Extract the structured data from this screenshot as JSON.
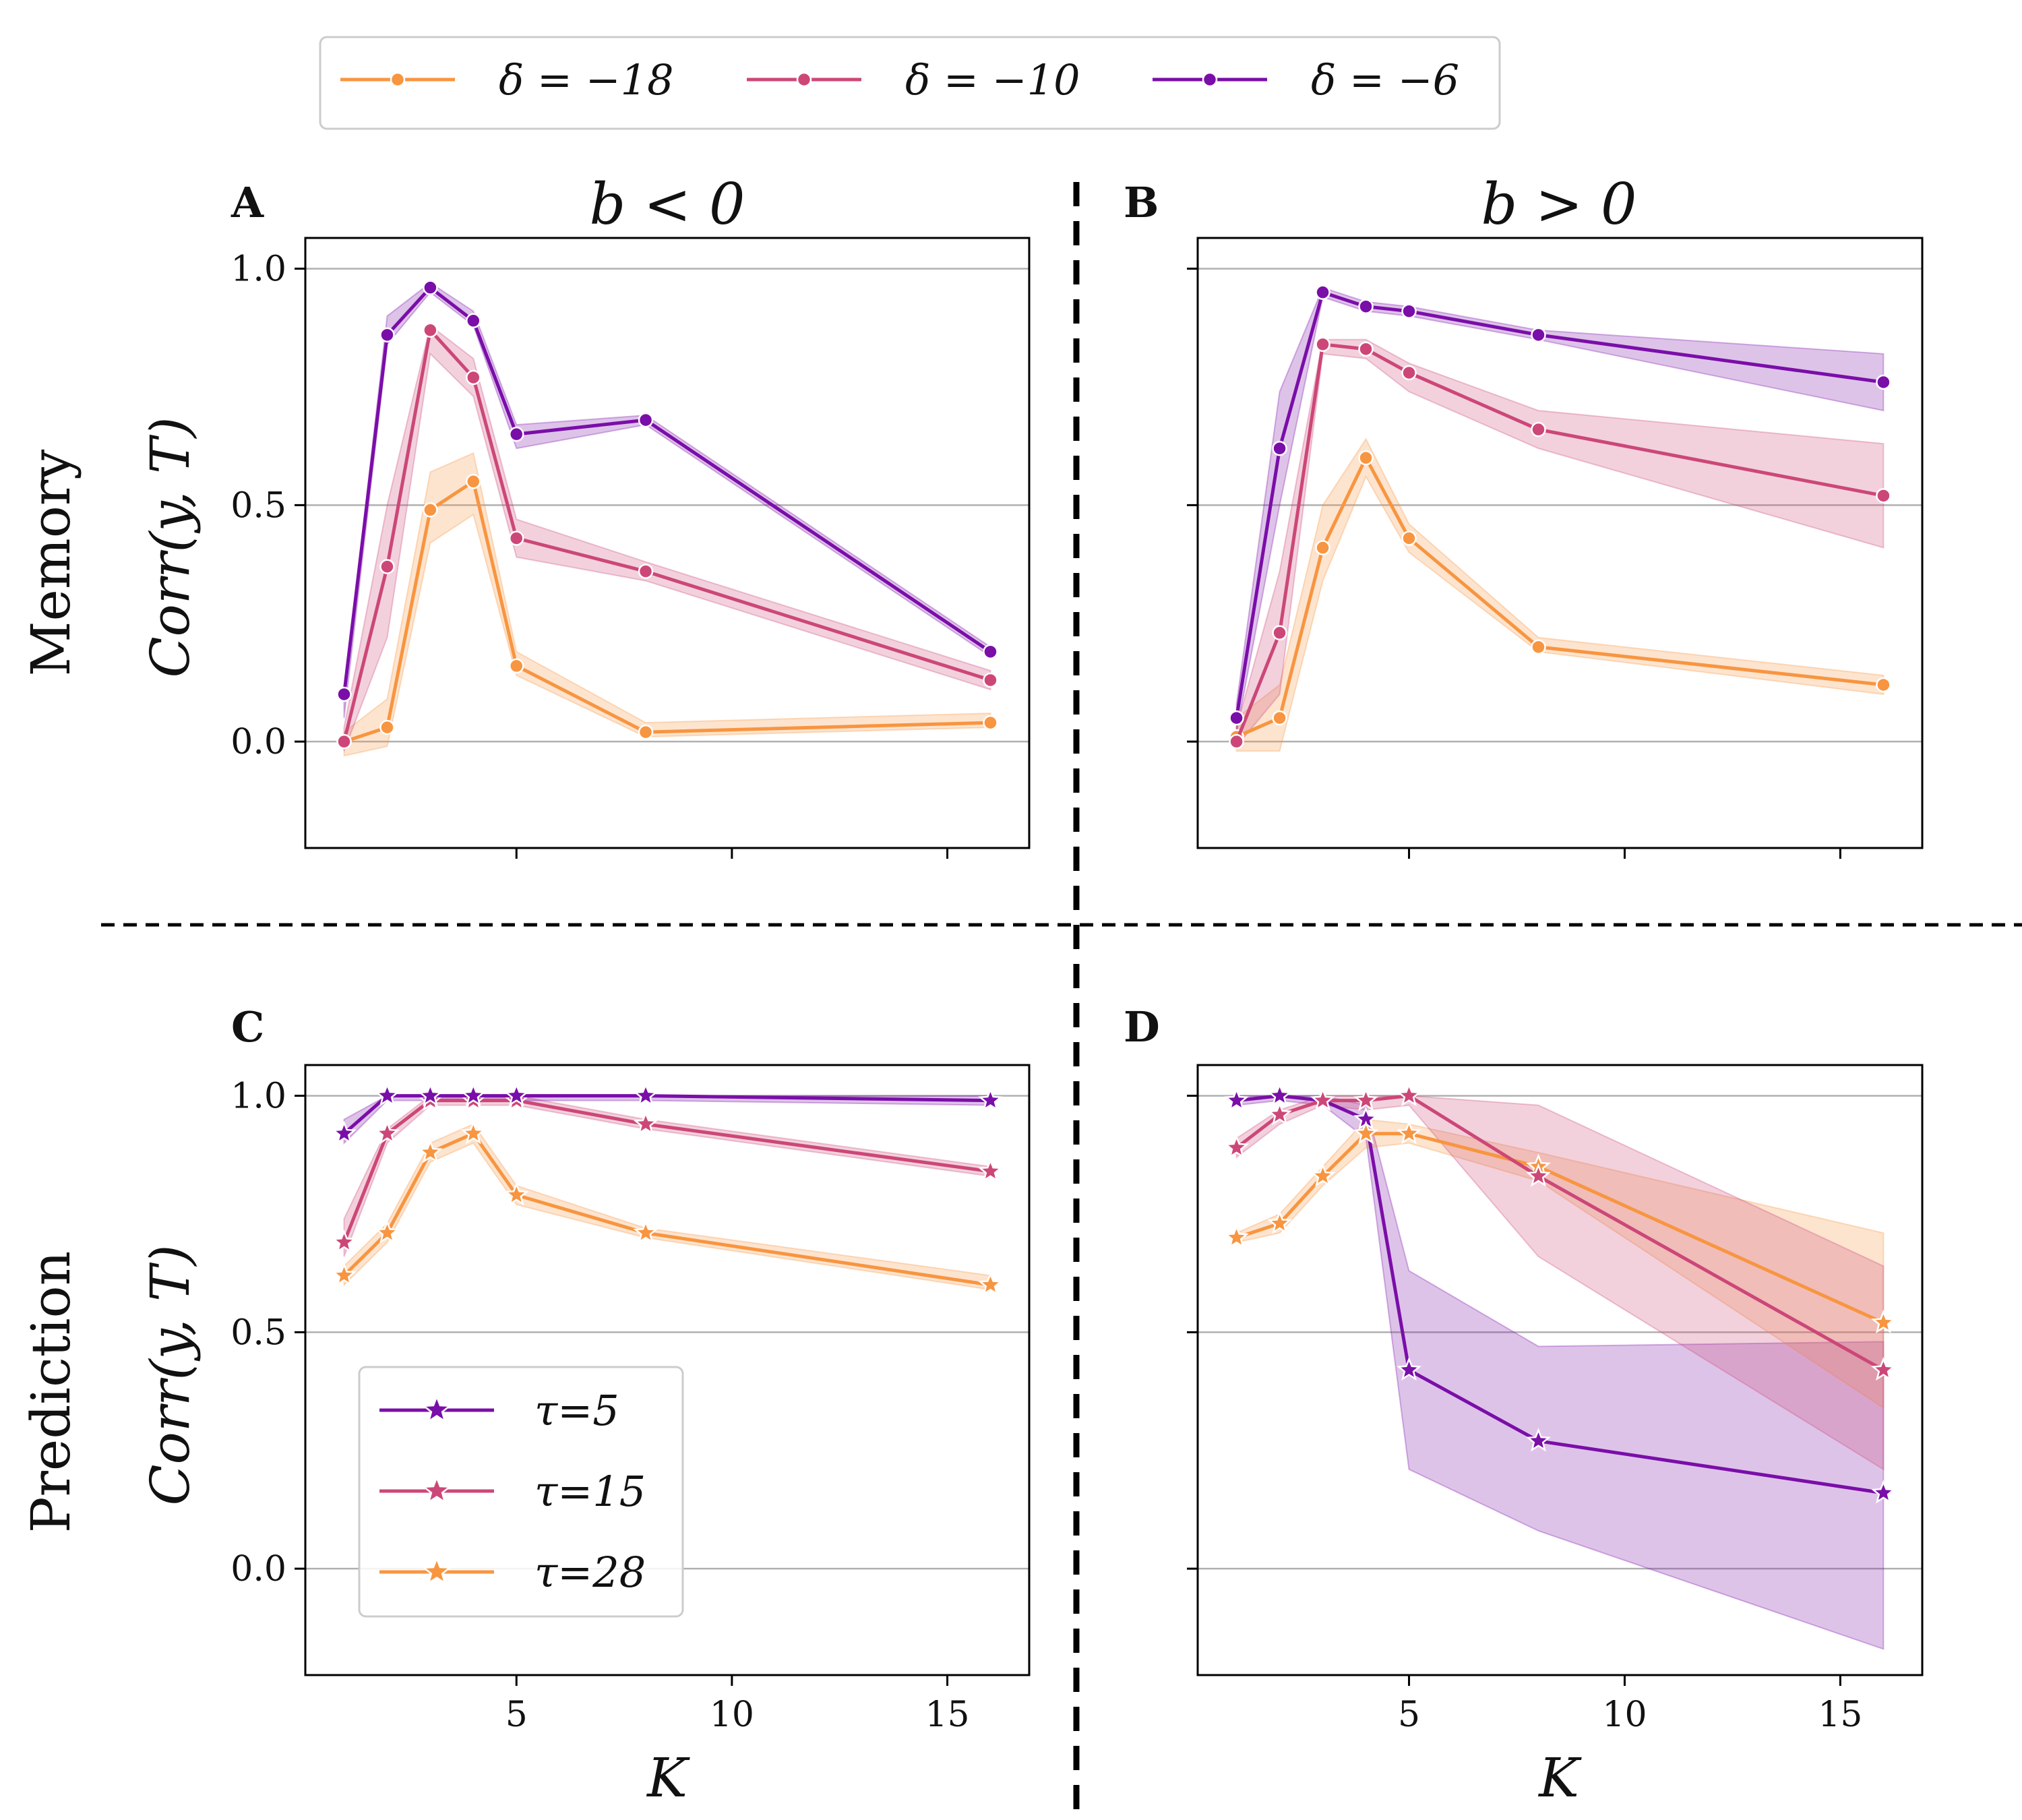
{
  "colors": {
    "purple": "#7a0ea8",
    "pink": "#cc4778",
    "orange": "#f89540",
    "grid": "#b0b0b0",
    "axis": "#000000"
  },
  "figure": {
    "row_labels": [
      "Memory",
      "Prediction"
    ],
    "column_titles": [
      "b < 0",
      "b > 0"
    ],
    "ylabel": "Corr(y, T)",
    "xlabel": "K"
  },
  "legends": {
    "top": {
      "marker": "circle",
      "entries": [
        {
          "label": "δ = −18",
          "color": "#f89540"
        },
        {
          "label": "δ = −10",
          "color": "#cc4778"
        },
        {
          "label": "δ = −6",
          "color": "#7a0ea8"
        }
      ]
    },
    "panel_c": {
      "marker": "star",
      "entries": [
        {
          "label": "τ=5",
          "color": "#7a0ea8"
        },
        {
          "label": "τ=15",
          "color": "#cc4778"
        },
        {
          "label": "τ=28",
          "color": "#f89540"
        }
      ]
    }
  },
  "chart_data": [
    {
      "panel": "A",
      "type": "line",
      "title": "b < 0",
      "marker": "circle",
      "xlabel": "",
      "ylabel": "Corr(y, T)",
      "xlim": [
        0.1,
        16.9
      ],
      "ylim": [
        -0.225,
        1.065
      ],
      "xticks": [
        5,
        10,
        15
      ],
      "yticks": [
        0.0,
        0.5,
        1.0
      ],
      "ytick_labels": [
        "0.0",
        "0.5",
        "1.0"
      ],
      "show_xtick_labels": false,
      "x": [
        1,
        2,
        3,
        4,
        5,
        8,
        16
      ],
      "series": [
        {
          "name": "δ = −18",
          "color": "#f89540",
          "values": [
            0.0,
            0.03,
            0.49,
            0.55,
            0.16,
            0.02,
            0.04
          ],
          "lower": [
            -0.03,
            -0.01,
            0.42,
            0.48,
            0.14,
            0.01,
            0.03
          ],
          "upper": [
            0.02,
            0.09,
            0.57,
            0.61,
            0.19,
            0.04,
            0.06
          ]
        },
        {
          "name": "δ = −10",
          "color": "#cc4778",
          "values": [
            0.0,
            0.37,
            0.87,
            0.77,
            0.43,
            0.36,
            0.13
          ],
          "lower": [
            -0.02,
            0.22,
            0.82,
            0.73,
            0.39,
            0.34,
            0.11
          ],
          "upper": [
            0.03,
            0.5,
            0.88,
            0.81,
            0.47,
            0.38,
            0.15
          ]
        },
        {
          "name": "δ = −6",
          "color": "#7a0ea8",
          "values": [
            0.1,
            0.86,
            0.96,
            0.89,
            0.65,
            0.68,
            0.19
          ],
          "lower": [
            0.05,
            0.84,
            0.95,
            0.88,
            0.62,
            0.67,
            0.18
          ],
          "upper": [
            0.1,
            0.9,
            0.97,
            0.91,
            0.67,
            0.69,
            0.2
          ]
        }
      ]
    },
    {
      "panel": "B",
      "type": "line",
      "title": "b > 0",
      "marker": "circle",
      "xlabel": "",
      "ylabel": "",
      "xlim": [
        0.1,
        16.9
      ],
      "ylim": [
        -0.225,
        1.065
      ],
      "xticks": [
        5,
        10,
        15
      ],
      "yticks": [
        0.0,
        0.5,
        1.0
      ],
      "show_xtick_labels": false,
      "show_ytick_labels": false,
      "x": [
        1,
        2,
        3,
        4,
        5,
        8,
        16
      ],
      "series": [
        {
          "name": "δ = −18",
          "color": "#f89540",
          "values": [
            0.01,
            0.05,
            0.41,
            0.6,
            0.43,
            0.2,
            0.12
          ],
          "lower": [
            -0.02,
            -0.02,
            0.34,
            0.56,
            0.4,
            0.19,
            0.1
          ],
          "upper": [
            0.05,
            0.12,
            0.5,
            0.64,
            0.46,
            0.22,
            0.14
          ]
        },
        {
          "name": "δ = −10",
          "color": "#cc4778",
          "values": [
            0.0,
            0.23,
            0.84,
            0.83,
            0.78,
            0.66,
            0.52
          ],
          "lower": [
            -0.01,
            0.1,
            0.82,
            0.81,
            0.74,
            0.62,
            0.41
          ],
          "upper": [
            0.03,
            0.36,
            0.85,
            0.85,
            0.8,
            0.7,
            0.63
          ]
        },
        {
          "name": "δ = −6",
          "color": "#7a0ea8",
          "values": [
            0.05,
            0.62,
            0.95,
            0.92,
            0.91,
            0.86,
            0.76
          ],
          "lower": [
            0.02,
            0.5,
            0.94,
            0.91,
            0.9,
            0.85,
            0.7
          ],
          "upper": [
            0.08,
            0.74,
            0.96,
            0.93,
            0.92,
            0.87,
            0.82
          ]
        }
      ]
    },
    {
      "panel": "C",
      "type": "line",
      "title": "",
      "marker": "star",
      "xlabel": "K",
      "ylabel": "Corr(y, T)",
      "xlim": [
        0.1,
        16.9
      ],
      "ylim": [
        -0.225,
        1.065
      ],
      "xticks": [
        5,
        10,
        15
      ],
      "xtick_labels": [
        "5",
        "10",
        "15"
      ],
      "yticks": [
        0.0,
        0.5,
        1.0
      ],
      "ytick_labels": [
        "0.0",
        "0.5",
        "1.0"
      ],
      "x": [
        1,
        2,
        3,
        4,
        5,
        8,
        16
      ],
      "series": [
        {
          "name": "τ=28",
          "color": "#f89540",
          "values": [
            0.62,
            0.71,
            0.88,
            0.92,
            0.79,
            0.71,
            0.6
          ],
          "lower": [
            0.6,
            0.69,
            0.86,
            0.9,
            0.77,
            0.7,
            0.59
          ],
          "upper": [
            0.64,
            0.73,
            0.9,
            0.94,
            0.81,
            0.72,
            0.62
          ]
        },
        {
          "name": "τ=15",
          "color": "#cc4778",
          "values": [
            0.69,
            0.92,
            0.99,
            0.99,
            0.99,
            0.94,
            0.84
          ],
          "lower": [
            0.66,
            0.9,
            0.98,
            0.98,
            0.98,
            0.93,
            0.83
          ],
          "upper": [
            0.74,
            0.93,
            1.0,
            1.0,
            1.0,
            0.95,
            0.85
          ]
        },
        {
          "name": "τ=5",
          "color": "#7a0ea8",
          "values": [
            0.92,
            1.0,
            1.0,
            1.0,
            1.0,
            1.0,
            0.99
          ],
          "lower": [
            0.9,
            0.99,
            0.99,
            0.99,
            0.99,
            0.99,
            0.98
          ],
          "upper": [
            0.95,
            1.0,
            1.0,
            1.0,
            1.0,
            1.0,
            1.0
          ]
        }
      ]
    },
    {
      "panel": "D",
      "type": "line",
      "title": "",
      "marker": "star",
      "xlabel": "K",
      "ylabel": "",
      "xlim": [
        0.1,
        16.9
      ],
      "ylim": [
        -0.225,
        1.065
      ],
      "xticks": [
        5,
        10,
        15
      ],
      "xtick_labels": [
        "5",
        "10",
        "15"
      ],
      "yticks": [
        0.0,
        0.5,
        1.0
      ],
      "show_ytick_labels": false,
      "x": [
        1,
        2,
        3,
        4,
        5,
        8,
        16
      ],
      "series": [
        {
          "name": "τ=5",
          "color": "#7a0ea8",
          "values": [
            0.99,
            1.0,
            0.99,
            0.95,
            0.42,
            0.27,
            0.16
          ],
          "lower": [
            0.98,
            0.99,
            0.98,
            0.91,
            0.21,
            0.08,
            -0.17
          ],
          "upper": [
            1.0,
            1.0,
            1.0,
            0.98,
            0.63,
            0.47,
            0.48
          ]
        },
        {
          "name": "τ=28",
          "color": "#f89540",
          "values": [
            0.7,
            0.73,
            0.83,
            0.92,
            0.92,
            0.85,
            0.52
          ],
          "lower": [
            0.69,
            0.71,
            0.81,
            0.89,
            0.9,
            0.82,
            0.34
          ],
          "upper": [
            0.71,
            0.75,
            0.85,
            0.95,
            0.94,
            0.88,
            0.71
          ]
        },
        {
          "name": "τ=15",
          "color": "#cc4778",
          "values": [
            0.89,
            0.96,
            0.99,
            0.99,
            1.0,
            0.83,
            0.42
          ],
          "lower": [
            0.87,
            0.94,
            0.98,
            0.97,
            0.98,
            0.66,
            0.21
          ],
          "upper": [
            0.91,
            0.97,
            1.0,
            1.0,
            1.0,
            0.98,
            0.64
          ]
        }
      ]
    }
  ]
}
